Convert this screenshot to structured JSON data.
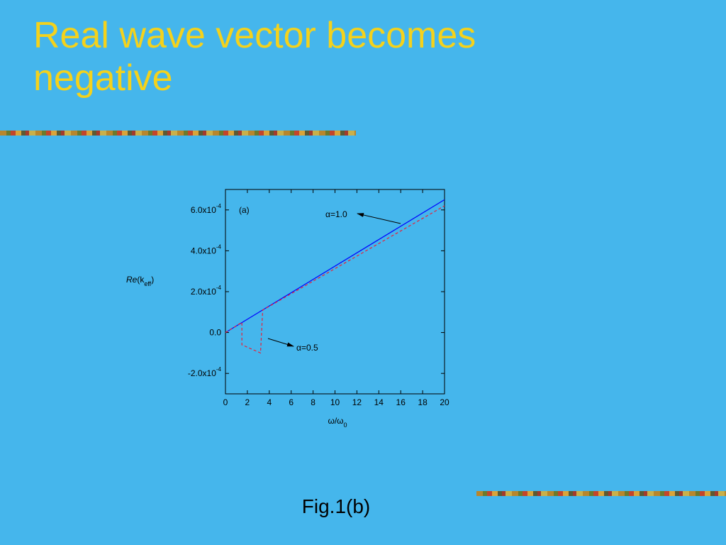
{
  "title": "Real wave vector becomes negative",
  "caption": "Fig.1(b)",
  "chart_data": {
    "type": "line",
    "panel_label": "(a)",
    "xlabel": {
      "main": "ω/ω",
      "sub": "0"
    },
    "ylabel": {
      "italic": "Re",
      "main": "(k",
      "sub": "eff",
      "end": ")"
    },
    "xlim": [
      0,
      20
    ],
    "xticks": [
      0,
      2,
      4,
      6,
      8,
      10,
      12,
      14,
      16,
      18,
      20
    ],
    "ylim": [
      -0.0003,
      0.0007
    ],
    "yticks": [
      {
        "value": -0.0002,
        "label": "-2.0x10",
        "exponent": "-4"
      },
      {
        "value": 0,
        "label": "0.0"
      },
      {
        "value": 0.0002,
        "label": "2.0x10",
        "exponent": "-4"
      },
      {
        "value": 0.0004,
        "label": "4.0x10",
        "exponent": "-4"
      },
      {
        "value": 0.0006,
        "label": "6.0x10",
        "exponent": "-4"
      }
    ],
    "series": [
      {
        "name": "α=1.0",
        "color": "#0000ff",
        "dashed": false,
        "x": [
          0,
          20
        ],
        "values": [
          0,
          0.00065
        ]
      },
      {
        "name": "α=0.5",
        "color": "#e8203a",
        "dashed": true,
        "x": [
          0,
          1.5,
          1.5,
          3.2,
          3.4,
          20
        ],
        "values": [
          0,
          5e-05,
          -6e-05,
          -0.0001,
          0.00011,
          0.00062
        ]
      }
    ]
  }
}
